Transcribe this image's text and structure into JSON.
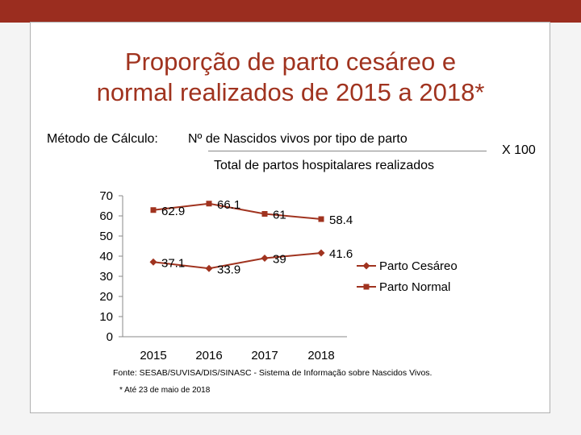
{
  "slide": {
    "title_line1": "Proporção de parto cesáreo e",
    "title_line2": "normal realizados de 2015 a 2018*",
    "metodo_label": "Método de Cálculo:",
    "numerator": "Nº de Nascidos vivos por tipo de parto",
    "denominator": "Total de partos hospitalares realizados",
    "multiplier": "X 100",
    "fonte": "Fonte: SESAB/SUVISA/DIS/SINASC - Sistema de Informação sobre Nascidos Vivos.",
    "nota": "* Até 23 de maio de 2018",
    "colors": {
      "accent_bar": "#9b2d1f",
      "title": "#a0331f"
    }
  },
  "chart_data": {
    "type": "line",
    "categories": [
      "2015",
      "2016",
      "2017",
      "2018"
    ],
    "ylim": [
      0,
      70
    ],
    "yticks": [
      "0",
      "10",
      "20",
      "30",
      "40",
      "50",
      "60",
      "70"
    ],
    "legend_position": "right",
    "grid": false,
    "series": [
      {
        "name": "Parto Cesáreo",
        "values": [
          37.1,
          33.9,
          39,
          41.6
        ],
        "labels": [
          "37.1",
          "33.9",
          "39",
          "41.6"
        ],
        "marker": "diamond",
        "color": "#a0331f"
      },
      {
        "name": "Parto Normal",
        "values": [
          62.9,
          66.1,
          61,
          58.4
        ],
        "labels": [
          "62.9",
          "66.1",
          "61",
          "58.4"
        ],
        "marker": "square",
        "color": "#a0331f"
      }
    ]
  }
}
